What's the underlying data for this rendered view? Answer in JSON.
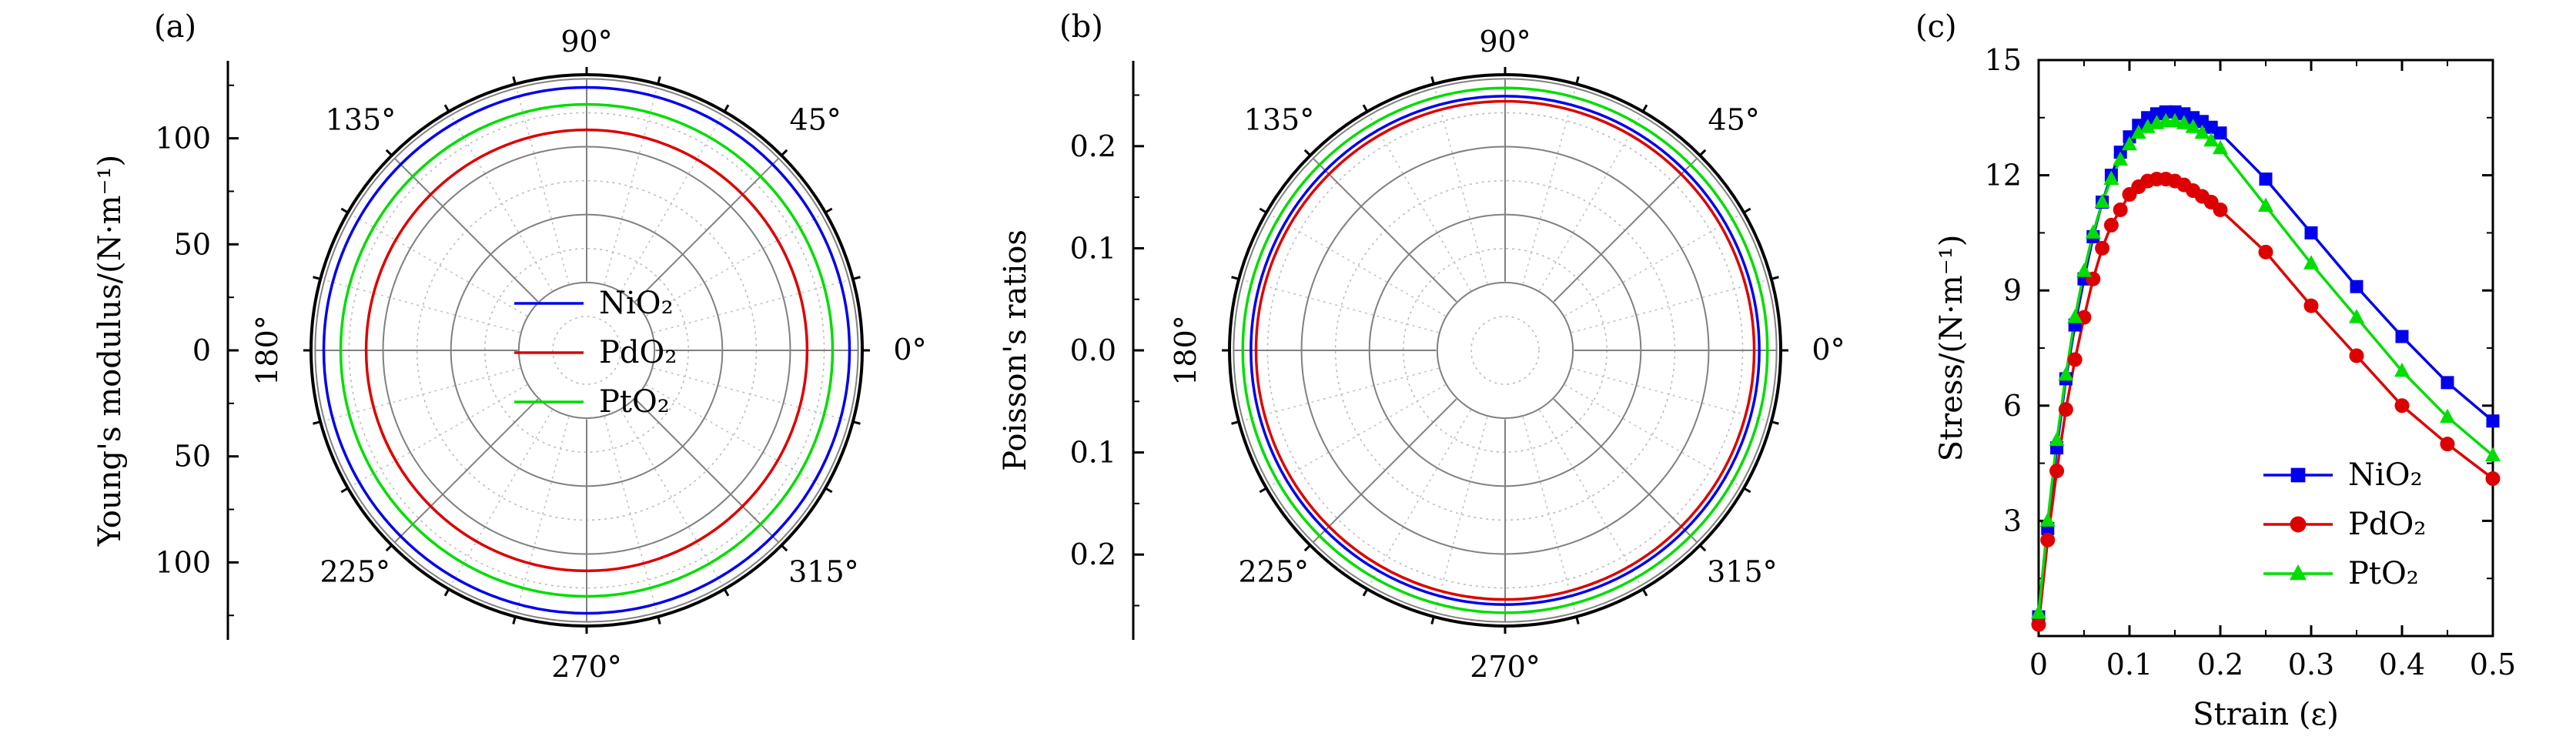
{
  "colors": {
    "NiO2": "#0000ee",
    "PdO2": "#dd0000",
    "PtO2": "#00dd00",
    "axis": "#000000",
    "grid": "#808080"
  },
  "chart_data": [
    {
      "panel_label": "(a)",
      "type": "polar",
      "ylabel": "Young's modulus/(N·m⁻¹)",
      "radial_range": [
        0,
        130
      ],
      "radial_ticks_upper": [
        "100",
        "50",
        "0"
      ],
      "radial_ticks_lower": [
        "50",
        "100"
      ],
      "angle_labels": [
        "90°",
        "45°",
        "0°",
        "315°",
        "270°",
        "225°",
        "180°",
        "135°"
      ],
      "legend_position": "center",
      "series": [
        {
          "name": "NiO₂",
          "r": 124
        },
        {
          "name": "PdO₂",
          "r": 104
        },
        {
          "name": "PtO₂",
          "r": 116
        }
      ]
    },
    {
      "panel_label": "(b)",
      "type": "polar",
      "ylabel": "Poisson's ratios",
      "radial_range": [
        0,
        0.27
      ],
      "radial_ticks_upper": [
        "0.2",
        "0.1",
        "0.0"
      ],
      "radial_ticks_lower": [
        "0.1",
        "0.2"
      ],
      "angle_labels": [
        "90°",
        "45°",
        "0°",
        "315°",
        "270°",
        "225°",
        "180°",
        "135°"
      ],
      "series": [
        {
          "name": "NiO₂",
          "r": 0.249
        },
        {
          "name": "PdO₂",
          "r": 0.244
        },
        {
          "name": "PtO₂",
          "r": 0.257
        }
      ]
    },
    {
      "panel_label": "(c)",
      "type": "line",
      "xlabel": "Strain (ε)",
      "ylabel": "Stress/(N·m⁻¹)",
      "xlim": [
        0,
        0.5
      ],
      "ylim": [
        0,
        15
      ],
      "xticks": [
        "0",
        "0.1",
        "0.2",
        "0.3",
        "0.4",
        "0.5"
      ],
      "yticks": [
        "3",
        "6",
        "9",
        "12",
        "15"
      ],
      "legend_position": "bottom-right",
      "series": [
        {
          "name": "NiO₂",
          "marker": "square",
          "x": [
            0,
            0.01,
            0.02,
            0.03,
            0.04,
            0.05,
            0.06,
            0.07,
            0.08,
            0.09,
            0.1,
            0.11,
            0.12,
            0.13,
            0.14,
            0.15,
            0.16,
            0.17,
            0.18,
            0.19,
            0.2,
            0.25,
            0.3,
            0.35,
            0.4,
            0.45,
            0.5
          ],
          "y": [
            0.5,
            2.8,
            4.9,
            6.7,
            8.1,
            9.3,
            10.4,
            11.3,
            12.0,
            12.6,
            13.0,
            13.3,
            13.5,
            13.6,
            13.65,
            13.65,
            13.6,
            13.5,
            13.4,
            13.25,
            13.1,
            11.9,
            10.5,
            9.1,
            7.8,
            6.6,
            5.6
          ]
        },
        {
          "name": "PdO₂",
          "marker": "circle",
          "x": [
            0,
            0.01,
            0.02,
            0.03,
            0.04,
            0.05,
            0.06,
            0.07,
            0.08,
            0.09,
            0.1,
            0.11,
            0.12,
            0.13,
            0.14,
            0.15,
            0.16,
            0.17,
            0.18,
            0.19,
            0.2,
            0.25,
            0.3,
            0.35,
            0.4,
            0.45,
            0.5
          ],
          "y": [
            0.3,
            2.5,
            4.3,
            5.9,
            7.2,
            8.3,
            9.3,
            10.1,
            10.7,
            11.1,
            11.5,
            11.7,
            11.85,
            11.9,
            11.9,
            11.85,
            11.75,
            11.6,
            11.45,
            11.3,
            11.1,
            10.0,
            8.6,
            7.3,
            6.0,
            5.0,
            4.1
          ]
        },
        {
          "name": "PtO₂",
          "marker": "triangle",
          "x": [
            0,
            0.01,
            0.02,
            0.03,
            0.04,
            0.05,
            0.06,
            0.07,
            0.08,
            0.09,
            0.1,
            0.11,
            0.12,
            0.13,
            0.14,
            0.15,
            0.16,
            0.17,
            0.18,
            0.19,
            0.2,
            0.25,
            0.3,
            0.35,
            0.4,
            0.45,
            0.5
          ],
          "y": [
            0.6,
            3.0,
            5.1,
            6.8,
            8.3,
            9.5,
            10.5,
            11.3,
            11.9,
            12.4,
            12.8,
            13.1,
            13.25,
            13.35,
            13.4,
            13.4,
            13.35,
            13.25,
            13.1,
            12.9,
            12.7,
            11.2,
            9.7,
            8.3,
            6.9,
            5.7,
            4.7
          ]
        }
      ]
    }
  ]
}
